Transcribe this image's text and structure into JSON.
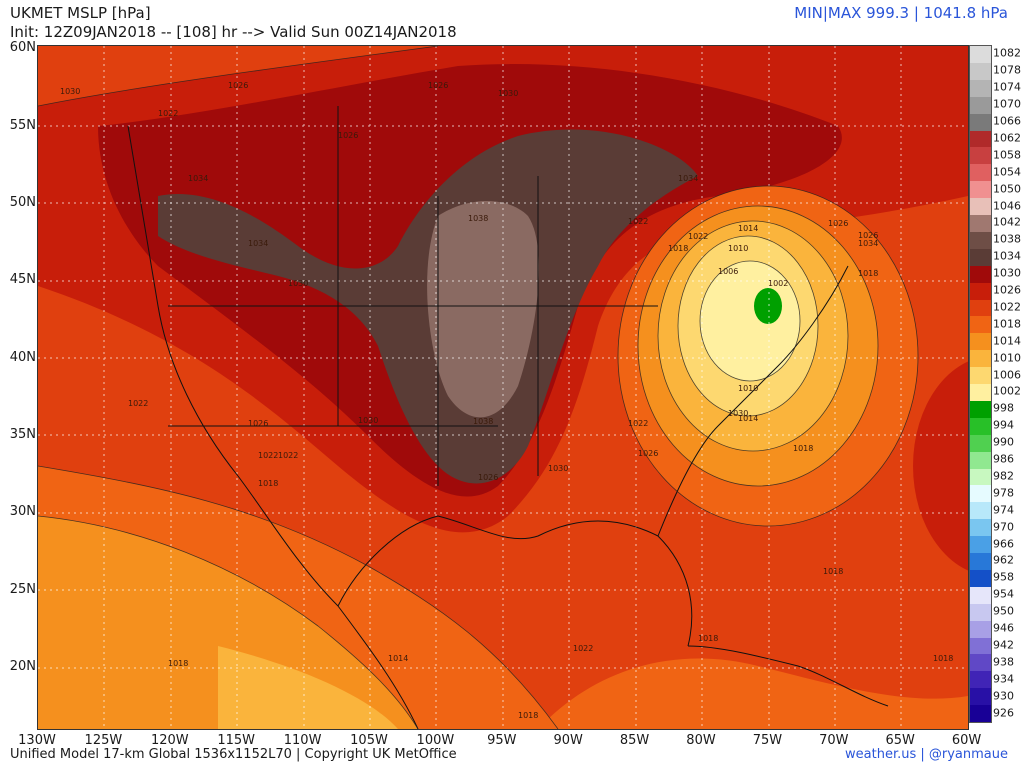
{
  "header": {
    "title_line1": "UKMET MSLP [hPa]",
    "title_line2": "Init: 12Z09JAN2018 -- [108] hr --> Valid Sun 00Z14JAN2018",
    "minmax": "MIN|MAX 999.3 | 1041.8 hPa"
  },
  "footer": {
    "left": "Unified Model 17-km Global 1536x1152L70 | Copyright UK MetOffice",
    "right": "weather.us | @ryanmaue"
  },
  "latitude_labels": [
    "60N",
    "55N",
    "50N",
    "45N",
    "40N",
    "35N",
    "30N",
    "25N",
    "20N"
  ],
  "longitude_labels": [
    "130W",
    "125W",
    "120W",
    "115W",
    "110W",
    "105W",
    "100W",
    "95W",
    "90W",
    "85W",
    "80W",
    "75W",
    "70W",
    "65W",
    "60W"
  ],
  "colorbar": {
    "labels": [
      "1082",
      "1078",
      "1074",
      "1070",
      "1066",
      "1062",
      "1058",
      "1054",
      "1050",
      "1046",
      "1042",
      "1038",
      "1034",
      "1030",
      "1026",
      "1022",
      "1018",
      "1014",
      "1010",
      "1006",
      "1002",
      "998",
      "994",
      "990",
      "986",
      "982",
      "978",
      "974",
      "970",
      "966",
      "962",
      "958",
      "954",
      "950",
      "946",
      "942",
      "938",
      "934",
      "930",
      "926"
    ],
    "colors": [
      "#dcdcdc",
      "#c8c8c8",
      "#b4b4b4",
      "#9a9a9a",
      "#7a7a7a",
      "#b02a2a",
      "#c84040",
      "#e06060",
      "#f09090",
      "#e8c0b8",
      "#a07870",
      "#6e4e46",
      "#5a3c36",
      "#a00a0a",
      "#c81e0a",
      "#e0400f",
      "#f06414",
      "#f5901e",
      "#fab43c",
      "#fdd870",
      "#fff0a0",
      "#00a000",
      "#28c028",
      "#50d050",
      "#90e890",
      "#c8f8c0",
      "#e6fbff",
      "#b8e8fa",
      "#7ac6f0",
      "#4aa0e6",
      "#2878d8",
      "#1450c8",
      "#e6e6fa",
      "#c8c8f0",
      "#a8a0e6",
      "#8070d6",
      "#6048c6",
      "#4024b6",
      "#2810a6",
      "#180096"
    ]
  },
  "map": {
    "isobar_labels": [
      "1030",
      "1026",
      "1022",
      "1026",
      "1026",
      "1030",
      "1034",
      "1038",
      "1038",
      "1034",
      "1034",
      "1030",
      "1030",
      "1026",
      "1026",
      "1022",
      "1018",
      "1014",
      "1010",
      "1006",
      "1002",
      "1010",
      "1014",
      "1018",
      "1022",
      "1022",
      "1018",
      "1018",
      "1022",
      "1026",
      "1030",
      "1026",
      "1022",
      "1018",
      "1014",
      "1018",
      "1018",
      "1022",
      "1018",
      "1018",
      "1022",
      "1026",
      "1030",
      "1034"
    ],
    "legend_pairs": "isobars every 4 hPa"
  },
  "pressure_centers": {
    "high_center_hpa": 1041.8,
    "low_center_hpa": 999.3
  }
}
